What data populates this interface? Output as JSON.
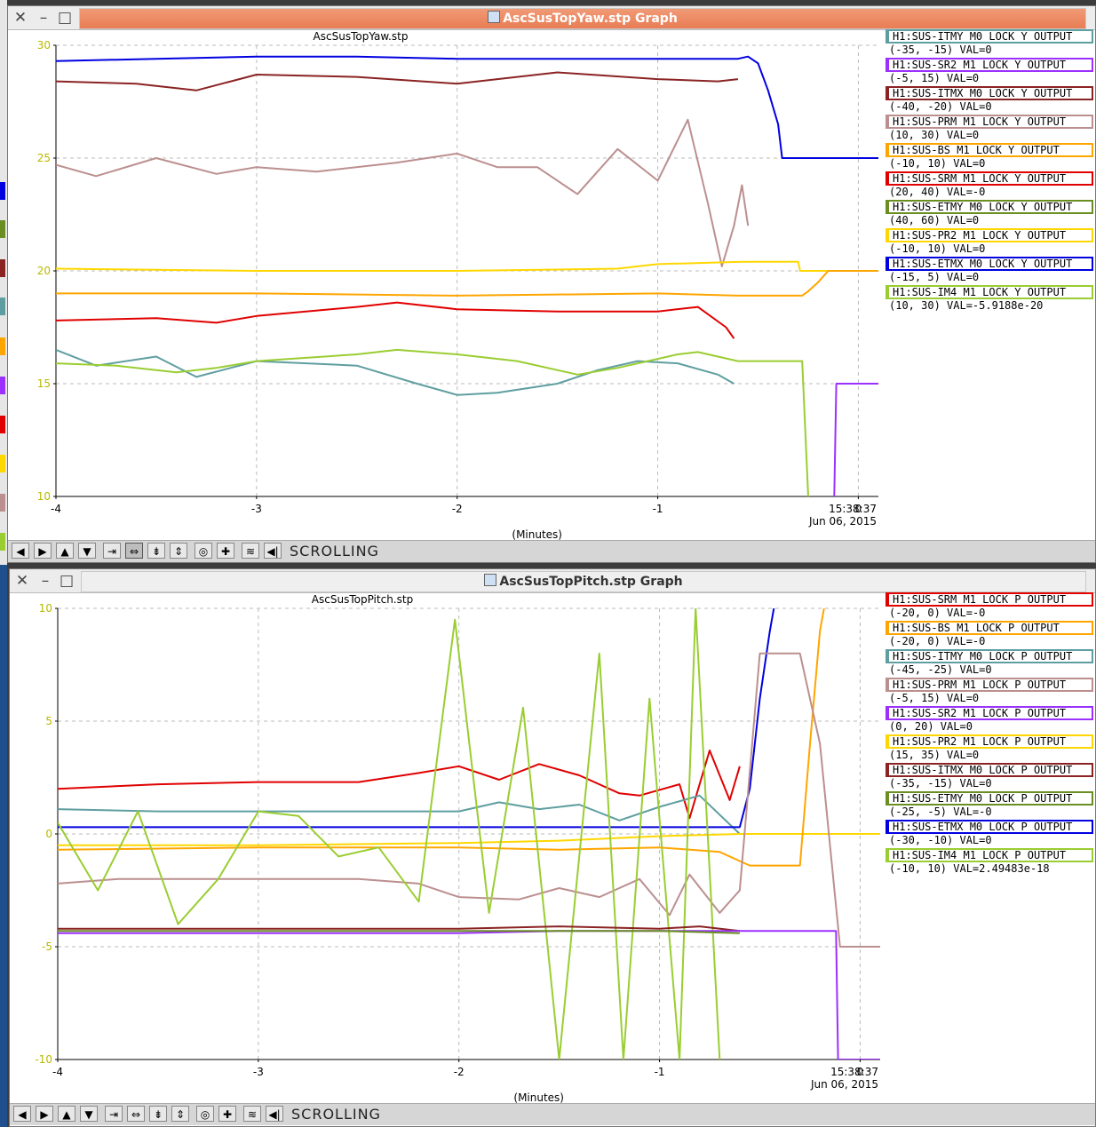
{
  "windows": [
    {
      "id": "yaw",
      "title": "AscSusTopYaw.stp Graph",
      "plot_title": "AscSusTopYaw.stp",
      "xlabel": "(Minutes)",
      "end_time": "15:38:37",
      "end_date": "Jun 06, 2015",
      "status": "SCROLLING",
      "legend": [
        {
          "name": "H1:SUS-ITMY_M0_LOCK_Y_OUTPUT",
          "range": "(-35, -15) VAL=0",
          "color": "#5f9ea0"
        },
        {
          "name": "H1:SUS-SR2_M1_LOCK_Y_OUTPUT",
          "range": "(-5, 15) VAL=0",
          "color": "#9b30ff"
        },
        {
          "name": "H1:SUS-ITMX_M0_LOCK_Y_OUTPUT",
          "range": "(-40, -20) VAL=0",
          "color": "#8b2323"
        },
        {
          "name": "H1:SUS-PRM_M1_LOCK_Y_OUTPUT",
          "range": "(10, 30) VAL=0",
          "color": "#bc8f8f"
        },
        {
          "name": "H1:SUS-BS_M1_LOCK_Y_OUTPUT",
          "range": "(-10, 10) VAL=0",
          "color": "#ffa500"
        },
        {
          "name": "H1:SUS-SRM_M1_LOCK_Y_OUTPUT",
          "range": "(20, 40) VAL=-0",
          "color": "#e00000"
        },
        {
          "name": "H1:SUS-ETMY_M0_LOCK_Y_OUTPUT",
          "range": "(40, 60) VAL=0",
          "color": "#6b8e23"
        },
        {
          "name": "H1:SUS-PR2_M1_LOCK_Y_OUTPUT",
          "range": "(-10, 10) VAL=0",
          "color": "#ffd700"
        },
        {
          "name": "H1:SUS-ETMX_M0_LOCK_Y_OUTPUT",
          "range": "(-15, 5) VAL=0",
          "color": "#0000e0"
        },
        {
          "name": "H1:SUS-IM4_M1_LOCK_Y_OUTPUT",
          "range": "(10, 30) VAL=-5.9188e-20",
          "color": "#9acd32"
        }
      ]
    },
    {
      "id": "pitch",
      "title": "AscSusTopPitch.stp Graph",
      "plot_title": "AscSusTopPitch.stp",
      "xlabel": "(Minutes)",
      "end_time": "15:38:37",
      "end_date": "Jun 06, 2015",
      "status": "SCROLLING",
      "legend": [
        {
          "name": "H1:SUS-SRM_M1_LOCK_P_OUTPUT",
          "range": "(-20, 0) VAL=-0",
          "color": "#e00000"
        },
        {
          "name": "H1:SUS-BS_M1_LOCK_P_OUTPUT",
          "range": "(-20, 0) VAL=-0",
          "color": "#ffa500"
        },
        {
          "name": "H1:SUS-ITMY_M0_LOCK_P_OUTPUT",
          "range": "(-45, -25) VAL=0",
          "color": "#5f9ea0"
        },
        {
          "name": "H1:SUS-PRM_M1_LOCK_P_OUTPUT",
          "range": "(-5, 15) VAL=0",
          "color": "#bc8f8f"
        },
        {
          "name": "H1:SUS-SR2_M1_LOCK_P_OUTPUT",
          "range": "(0, 20) VAL=0",
          "color": "#9b30ff"
        },
        {
          "name": "H1:SUS-PR2_M1_LOCK_P_OUTPUT",
          "range": "(15, 35) VAL=0",
          "color": "#ffd700"
        },
        {
          "name": "H1:SUS-ITMX_M0_LOCK_P_OUTPUT",
          "range": "(-35, -15) VAL=0",
          "color": "#8b2323"
        },
        {
          "name": "H1:SUS-ETMY_M0_LOCK_P_OUTPUT",
          "range": "(-25, -5) VAL=-0",
          "color": "#6b8e23"
        },
        {
          "name": "H1:SUS-ETMX_M0_LOCK_P_OUTPUT",
          "range": "(-30, -10) VAL=0",
          "color": "#0000e0"
        },
        {
          "name": "H1:SUS-IM4_M1_LOCK_P_OUTPUT",
          "range": "(-10, 10) VAL=2.49483e-18",
          "color": "#9acd32"
        }
      ]
    }
  ],
  "toolbar_icons": [
    "arrow-left-icon",
    "arrow-right-icon",
    "arrow-up-icon",
    "arrow-down-icon",
    "shrink-horizontal-icon",
    "expand-horizontal-icon",
    "shrink-vertical-icon",
    "expand-vertical-icon",
    "reset-icon",
    "add-icon",
    "autoscale-icon",
    "scroll-mode-icon"
  ],
  "chart_data": [
    {
      "type": "line",
      "title": "AscSusTopYaw.stp",
      "xlabel": "(Minutes)",
      "ylabel": "",
      "xlim": [
        -4,
        0.1
      ],
      "ylim": [
        10,
        30
      ],
      "xticks": [
        -4,
        -3,
        -2,
        -1,
        0
      ],
      "yticks": [
        10,
        15,
        20,
        25,
        30
      ],
      "grid": true,
      "legend_position": "right",
      "series": [
        {
          "name": "H1:SUS-ETMX_M0_LOCK_Y_OUTPUT",
          "color": "#0000e0",
          "x": [
            -4,
            -3.5,
            -3,
            -2.5,
            -2,
            -1.5,
            -1,
            -0.6,
            -0.55,
            -0.5,
            -0.45,
            -0.4,
            -0.38,
            0,
            0.1
          ],
          "y": [
            29.3,
            29.4,
            29.5,
            29.5,
            29.4,
            29.4,
            29.4,
            29.4,
            29.5,
            29.2,
            28,
            26.5,
            25,
            25,
            25
          ]
        },
        {
          "name": "H1:SUS-ITMX_M0_LOCK_Y_OUTPUT",
          "color": "#8b2323",
          "x": [
            -4,
            -3.6,
            -3.3,
            -3,
            -2.5,
            -2,
            -1.5,
            -1,
            -0.7,
            -0.6
          ],
          "y": [
            28.4,
            28.3,
            28.0,
            28.7,
            28.6,
            28.3,
            28.8,
            28.5,
            28.4,
            28.5
          ]
        },
        {
          "name": "H1:SUS-PRM_M1_LOCK_Y_OUTPUT",
          "color": "#bc8f8f",
          "x": [
            -4,
            -3.8,
            -3.5,
            -3.2,
            -3,
            -2.7,
            -2.3,
            -2,
            -1.8,
            -1.6,
            -1.4,
            -1.2,
            -1.0,
            -0.85,
            -0.75,
            -0.68,
            -0.62,
            -0.58,
            -0.55
          ],
          "y": [
            24.7,
            24.2,
            25.0,
            24.3,
            24.6,
            24.4,
            24.8,
            25.2,
            24.6,
            24.6,
            23.4,
            25.4,
            24.0,
            26.7,
            23.0,
            20.2,
            22.0,
            23.8,
            22.0
          ]
        },
        {
          "name": "H1:SUS-PR2_M1_LOCK_Y_OUTPUT",
          "color": "#ffd700",
          "x": [
            -4,
            -3,
            -2,
            -1.2,
            -1,
            -0.58,
            -0.3,
            -0.29,
            0.1
          ],
          "y": [
            20.1,
            20.0,
            20.0,
            20.1,
            20.3,
            20.4,
            20.4,
            20.0,
            20.0
          ]
        },
        {
          "name": "H1:SUS-BS_M1_LOCK_Y_OUTPUT",
          "color": "#ffa500",
          "x": [
            -4,
            -3,
            -2,
            -1,
            -0.6,
            -0.28,
            -0.25,
            -0.2,
            -0.15,
            0.1
          ],
          "y": [
            19.0,
            19.0,
            18.9,
            19.0,
            18.9,
            18.9,
            19.1,
            19.5,
            20.0,
            20.0
          ]
        },
        {
          "name": "H1:SUS-SRM_M1_LOCK_Y_OUTPUT",
          "color": "#e00000",
          "x": [
            -4,
            -3.5,
            -3.2,
            -3,
            -2.5,
            -2.3,
            -2,
            -1.5,
            -1,
            -0.8,
            -0.66,
            -0.62
          ],
          "y": [
            17.8,
            17.9,
            17.7,
            18.0,
            18.4,
            18.6,
            18.3,
            18.2,
            18.2,
            18.4,
            17.5,
            17.0
          ]
        },
        {
          "name": "H1:SUS-ITMY_M0_LOCK_Y_OUTPUT",
          "color": "#5f9ea0",
          "x": [
            -4,
            -3.8,
            -3.5,
            -3.3,
            -3,
            -2.5,
            -2.2,
            -2,
            -1.8,
            -1.5,
            -1.3,
            -1.1,
            -0.9,
            -0.7,
            -0.62
          ],
          "y": [
            16.5,
            15.8,
            16.2,
            15.3,
            16.0,
            15.8,
            15.0,
            14.5,
            14.6,
            15.0,
            15.6,
            16.0,
            15.9,
            15.4,
            15.0
          ]
        },
        {
          "name": "H1:SUS-IM4_M1_LOCK_Y_OUTPUT",
          "color": "#9acd32",
          "x": [
            -4,
            -3.7,
            -3.4,
            -3.2,
            -3,
            -2.5,
            -2.3,
            -2,
            -1.7,
            -1.4,
            -1.2,
            -1,
            -0.9,
            -0.8,
            -0.7,
            -0.6,
            -0.28,
            -0.26,
            -0.25
          ],
          "y": [
            15.9,
            15.8,
            15.5,
            15.7,
            16.0,
            16.3,
            16.5,
            16.3,
            16.0,
            15.4,
            15.7,
            16.1,
            16.3,
            16.4,
            16.2,
            16.0,
            16.0,
            12.0,
            10.0
          ]
        },
        {
          "name": "H1:SUS-SR2_M1_LOCK_Y_OUTPUT",
          "color": "#9b30ff",
          "x": [
            -0.12,
            -0.11,
            0.1
          ],
          "y": [
            10.0,
            15.0,
            15.0
          ]
        }
      ]
    },
    {
      "type": "line",
      "title": "AscSusTopPitch.stp",
      "xlabel": "(Minutes)",
      "ylabel": "",
      "xlim": [
        -4,
        0.1
      ],
      "ylim": [
        -10,
        10
      ],
      "xticks": [
        -4,
        -3,
        -2,
        -1,
        0
      ],
      "yticks": [
        -10,
        -5,
        0,
        5,
        10
      ],
      "grid": true,
      "legend_position": "right",
      "series": [
        {
          "name": "H1:SUS-SRM_M1_LOCK_P_OUTPUT",
          "color": "#e00000",
          "x": [
            -4,
            -3.5,
            -3,
            -2.5,
            -2.2,
            -2,
            -1.8,
            -1.6,
            -1.4,
            -1.2,
            -1.1,
            -0.9,
            -0.85,
            -0.75,
            -0.65,
            -0.6
          ],
          "y": [
            2.0,
            2.2,
            2.3,
            2.3,
            2.7,
            3.0,
            2.4,
            3.1,
            2.6,
            1.8,
            1.7,
            2.2,
            0.7,
            3.7,
            1.5,
            3.0
          ]
        },
        {
          "name": "H1:SUS-ITMY_M0_LOCK_P_OUTPUT",
          "color": "#5f9ea0",
          "x": [
            -4,
            -3.5,
            -3,
            -2.5,
            -2,
            -1.8,
            -1.6,
            -1.4,
            -1.2,
            -1.0,
            -0.8,
            -0.6
          ],
          "y": [
            1.1,
            1.0,
            1.0,
            1.0,
            1.0,
            1.4,
            1.1,
            1.3,
            0.6,
            1.2,
            1.7,
            0.0
          ]
        },
        {
          "name": "H1:SUS-ETMX_M0_LOCK_P_OUTPUT",
          "color": "#0000e0",
          "x": [
            -4,
            -3,
            -2,
            -1,
            -0.6,
            -0.55,
            -0.5,
            -0.45,
            -0.43
          ],
          "y": [
            0.3,
            0.3,
            0.3,
            0.3,
            0.3,
            2.0,
            6.0,
            9.0,
            10.0
          ]
        },
        {
          "name": "H1:SUS-PR2_M1_LOCK_P_OUTPUT",
          "color": "#ffd700",
          "x": [
            -4,
            -3,
            -2,
            -1.5,
            -1,
            -0.6,
            -0.3,
            0.1
          ],
          "y": [
            -0.5,
            -0.5,
            -0.4,
            -0.3,
            -0.1,
            0.0,
            0.0,
            0.0
          ]
        },
        {
          "name": "H1:SUS-BS_M1_LOCK_P_OUTPUT",
          "color": "#ffa500",
          "x": [
            -4,
            -3,
            -2,
            -1.5,
            -1,
            -0.7,
            -0.55,
            -0.3,
            -0.25,
            -0.2,
            -0.18
          ],
          "y": [
            -0.7,
            -0.6,
            -0.6,
            -0.7,
            -0.6,
            -0.8,
            -1.4,
            -1.4,
            4.0,
            9.0,
            10.0
          ]
        },
        {
          "name": "H1:SUS-PRM_M1_LOCK_P_OUTPUT",
          "color": "#bc8f8f",
          "x": [
            -4,
            -3.7,
            -3.2,
            -2.5,
            -2.2,
            -2,
            -1.7,
            -1.5,
            -1.3,
            -1.1,
            -0.95,
            -0.85,
            -0.7,
            -0.6,
            -0.5,
            -0.3,
            -0.2,
            -0.1,
            0.1
          ],
          "y": [
            -2.2,
            -2.0,
            -2.0,
            -2.0,
            -2.2,
            -2.8,
            -2.9,
            -2.4,
            -2.8,
            -2.0,
            -3.6,
            -1.8,
            -3.5,
            -2.5,
            8.0,
            8.0,
            4.0,
            -5.0,
            -5.0
          ]
        },
        {
          "name": "H1:SUS-IM4_M1_LOCK_P_OUTPUT",
          "color": "#9acd32",
          "x": [
            -4,
            -3.8,
            -3.6,
            -3.4,
            -3.2,
            -3,
            -2.8,
            -2.6,
            -2.4,
            -2.2,
            -2.02,
            -1.85,
            -1.68,
            -1.5,
            -1.3,
            -1.18,
            -1.05,
            -0.9,
            -0.82,
            -0.7
          ],
          "y": [
            0.5,
            -2.5,
            1.0,
            -4.0,
            -2.0,
            1.0,
            0.8,
            -1.0,
            -0.6,
            -3.0,
            9.5,
            -3.5,
            5.6,
            -10.0,
            8.0,
            -10.0,
            6.0,
            -10.0,
            10.0,
            -10.0
          ]
        },
        {
          "name": "H1:SUS-ITMX_M0_LOCK_P_OUTPUT",
          "color": "#8b2323",
          "x": [
            -4,
            -3,
            -2,
            -1.5,
            -1,
            -0.8,
            -0.6
          ],
          "y": [
            -4.2,
            -4.2,
            -4.2,
            -4.1,
            -4.2,
            -4.1,
            -4.3
          ]
        },
        {
          "name": "H1:SUS-SR2_M1_LOCK_P_OUTPUT",
          "color": "#9b30ff",
          "x": [
            -4,
            -3,
            -2,
            -1.5,
            -1,
            -0.6,
            -0.5,
            -0.12,
            -0.11,
            0.1
          ],
          "y": [
            -4.4,
            -4.4,
            -4.4,
            -4.3,
            -4.3,
            -4.3,
            -4.3,
            -4.3,
            -10.0,
            -10.0
          ]
        },
        {
          "name": "H1:SUS-ETMY_M0_LOCK_P_OUTPUT",
          "color": "#6b8e23",
          "x": [
            -4,
            -3,
            -2,
            -1,
            -0.6
          ],
          "y": [
            -4.3,
            -4.3,
            -4.3,
            -4.3,
            -4.4
          ]
        }
      ]
    }
  ]
}
